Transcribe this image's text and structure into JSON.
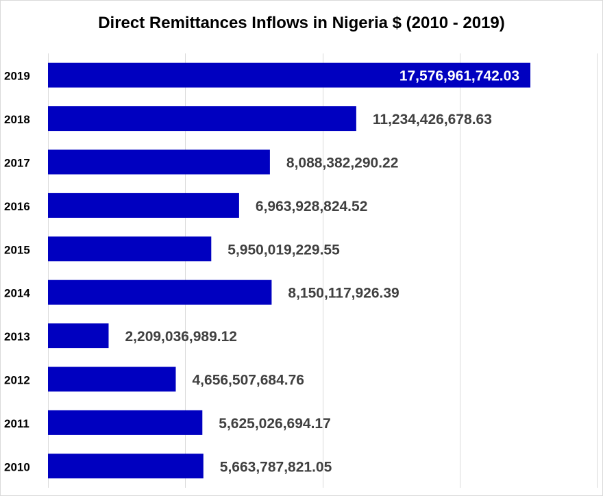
{
  "chart_data": {
    "type": "bar",
    "orientation": "horizontal",
    "title": "Direct Remittances Inflows in Nigeria $ (2010 - 2019)",
    "xlabel": "",
    "ylabel": "",
    "categories": [
      "2019",
      "2018",
      "2017",
      "2016",
      "2015",
      "2014",
      "2013",
      "2012",
      "2011",
      "2010"
    ],
    "values": [
      17576961742.03,
      11234426678.63,
      8088382290.22,
      6963928824.52,
      5950019229.55,
      8150117926.39,
      2209036989.12,
      4656507684.76,
      5625026694.17,
      5663787821.05
    ],
    "value_labels": [
      "17,576,961,742.03",
      "11,234,426,678.63",
      "8,088,382,290.22",
      "6,963,928,824.52",
      "5,950,019,229.55",
      "8,150,117,926.39",
      "2,209,036,989.12",
      "4,656,507,684.76",
      "5,625,026,694.17",
      "5,663,787,821.05"
    ],
    "xlim": [
      0,
      20000000000
    ],
    "grid": true,
    "legend": "none",
    "bar_color": "#0000c0",
    "label_color": "#404040",
    "inside_label_color": "#ffffff",
    "gridline_color": "#d9d9d9"
  }
}
